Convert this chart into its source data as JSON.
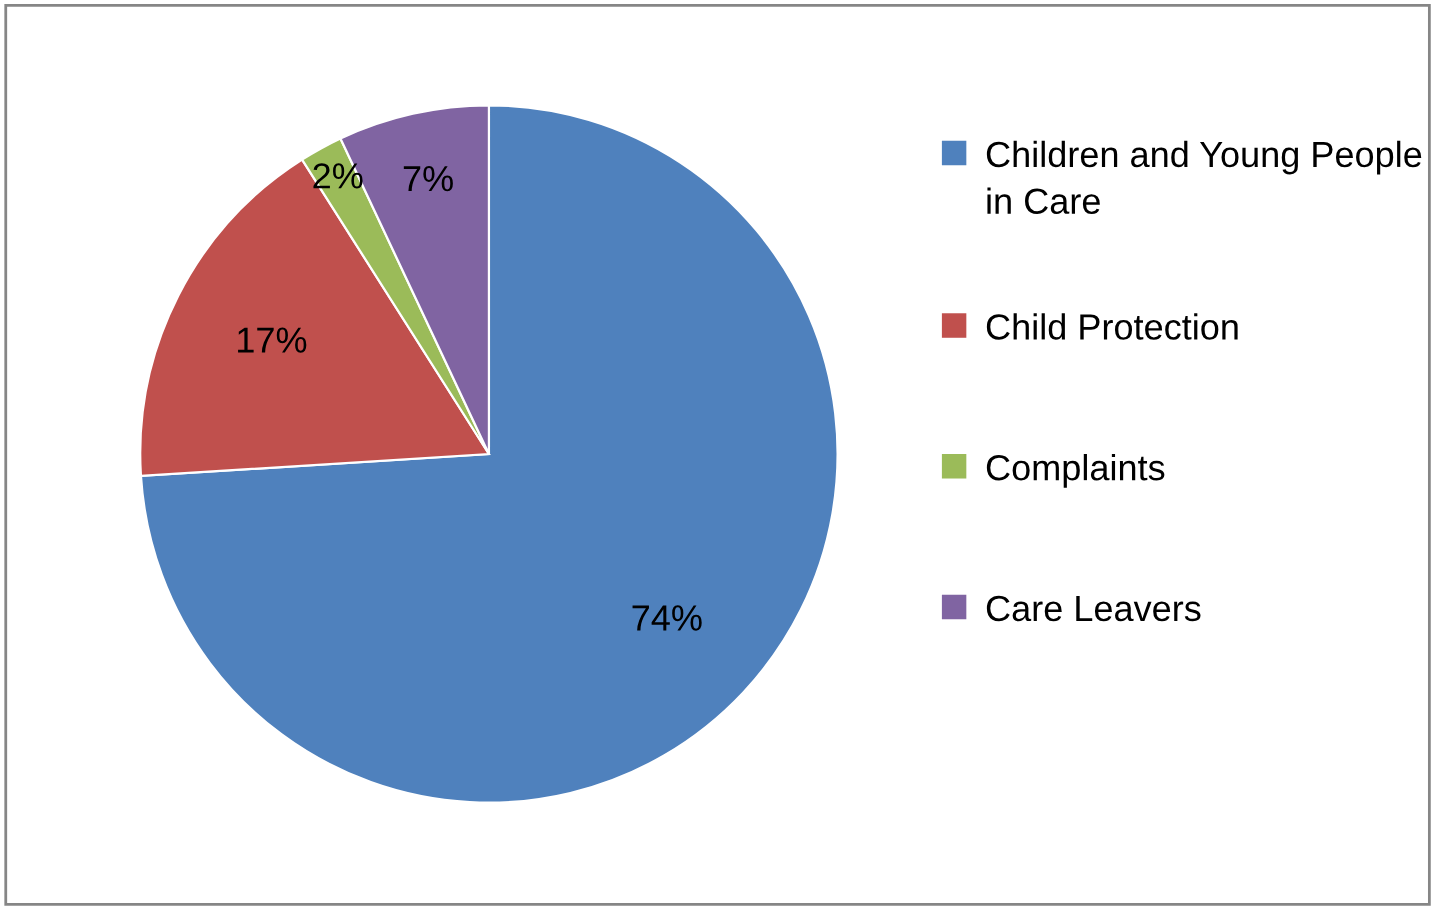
{
  "chart_data": {
    "type": "pie",
    "categories": [
      "Children and Young People in Care",
      "Child Protection",
      "Complaints",
      "Care Leavers"
    ],
    "values": [
      74,
      17,
      2,
      7
    ],
    "colors": [
      "#4f81bd",
      "#c0504d",
      "#9bbb59",
      "#8064a2"
    ],
    "value_labels": [
      "74%",
      "17%",
      "2%",
      "7%"
    ],
    "legend": "right"
  }
}
